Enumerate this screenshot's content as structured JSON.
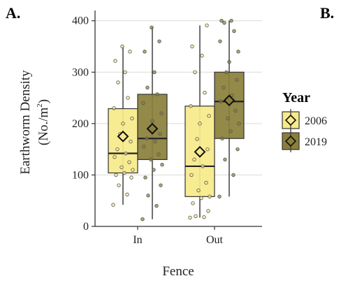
{
  "panel_labels": [
    "A.",
    "B."
  ],
  "chart_data": {
    "type": "box",
    "xlabel": "Fence",
    "ylabel_line1": "Earthworm Density",
    "ylabel_unit": "(No./m",
    "ylabel_sup": "2",
    "ylabel_close": ")",
    "categories": [
      "In",
      "Out"
    ],
    "ylim": [
      0,
      420
    ],
    "yticks": [
      0,
      100,
      200,
      300,
      400
    ],
    "grid": true,
    "legend": {
      "title": "Year",
      "position": "right",
      "entries": [
        "2006",
        "2019"
      ]
    },
    "colors": {
      "2006": "#f7ea8a",
      "2019": "#8a7f3a"
    },
    "series": [
      {
        "name": "2006",
        "boxes": [
          {
            "category": "In",
            "min": 42,
            "q1": 104,
            "median": 142,
            "q3": 229,
            "max": 350,
            "mean": 175,
            "points": [
              42,
              62,
              80,
              95,
              100,
              104,
              110,
              115,
              125,
              135,
              142,
              150,
              165,
              180,
              200,
              210,
              230,
              250,
              280,
              300,
              322,
              340,
              350
            ]
          },
          {
            "category": "Out",
            "min": 17,
            "q1": 58,
            "median": 117,
            "q3": 234,
            "max": 391,
            "mean": 145,
            "points": [
              17,
              18,
              20,
              30,
              45,
              55,
              58,
              70,
              85,
              100,
              117,
              130,
              150,
              170,
              200,
              215,
              234,
              260,
              300,
              332,
              350,
              391
            ]
          }
        ]
      },
      {
        "name": "2019",
        "boxes": [
          {
            "category": "In",
            "min": 14,
            "q1": 130,
            "median": 171,
            "q3": 257,
            "max": 387,
            "mean": 190,
            "points": [
              14,
              40,
              60,
              80,
              95,
              110,
              120,
              130,
              140,
              155,
              165,
              171,
              180,
              190,
              205,
              220,
              240,
              257,
              270,
              300,
              340,
              360,
              387
            ]
          },
          {
            "category": "Out",
            "min": 58,
            "q1": 171,
            "median": 243,
            "q3": 300,
            "max": 400,
            "mean": 245,
            "points": [
              58,
              100,
              130,
              150,
              171,
              185,
              200,
              210,
              225,
              243,
              255,
              270,
              285,
              300,
              320,
              340,
              360,
              380,
              396,
              400,
              400
            ]
          }
        ]
      }
    ]
  }
}
